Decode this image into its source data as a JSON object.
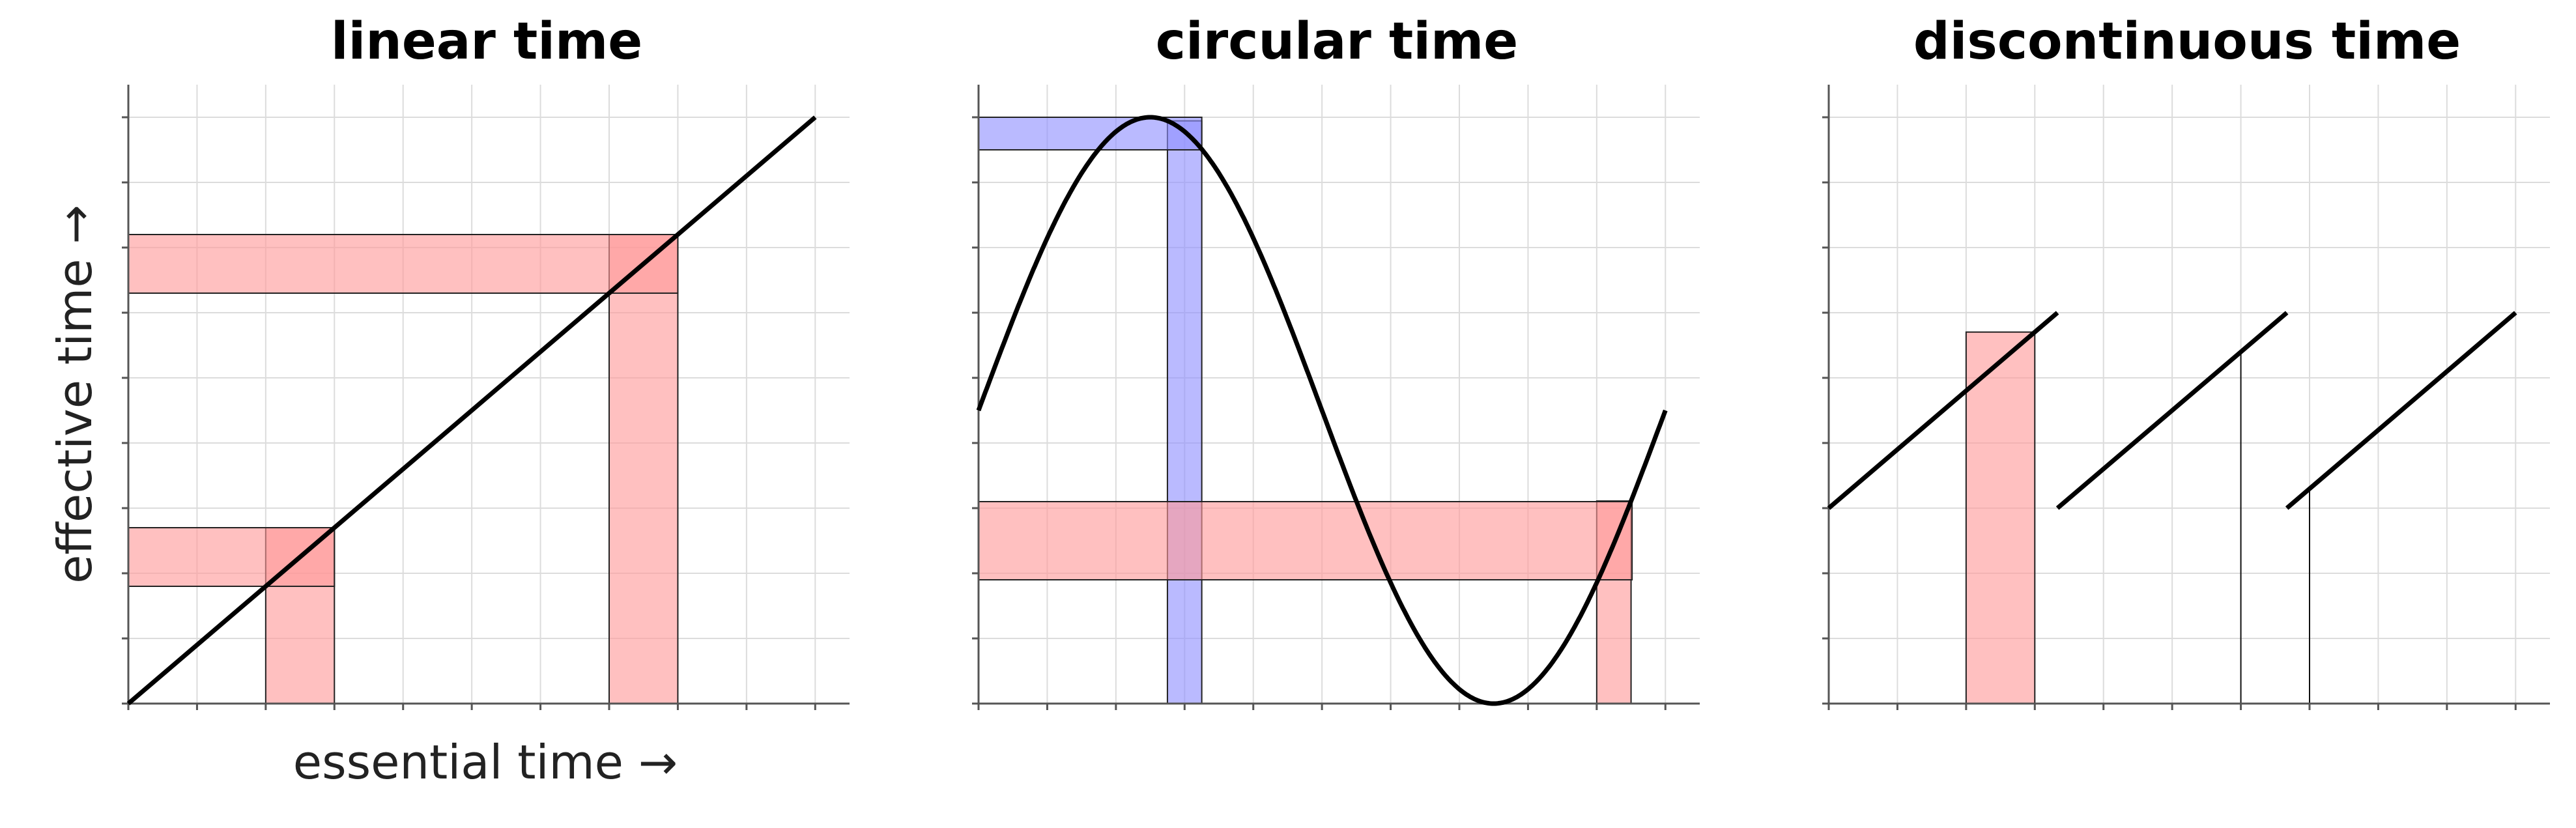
{
  "xlabel": "essential time →",
  "ylabel": "effective time →",
  "colors": {
    "curve": "#000000",
    "highlight_red": "#ff9999",
    "highlight_blue": "#8f8fff",
    "grid": "#dcdcdc",
    "axis": "#555555"
  },
  "chart_data": [
    {
      "type": "line",
      "title": "linear time",
      "xlim": [
        0,
        10.5
      ],
      "ylim": [
        0,
        9.5
      ],
      "grid": true,
      "curves": [
        {
          "name": "",
          "x": [
            0,
            10
          ],
          "y": [
            0,
            9
          ]
        }
      ],
      "bands": [
        {
          "orientation": "vertical",
          "from": 2,
          "to": 3,
          "ytop_at_x": "curve",
          "color": "red"
        },
        {
          "orientation": "horizontal",
          "from": 1.8,
          "to": 2.7,
          "xright_at_y": "curve",
          "color": "red"
        },
        {
          "orientation": "vertical",
          "from": 7,
          "to": 8,
          "ytop_at_x": "curve",
          "color": "red"
        },
        {
          "orientation": "horizontal",
          "from": 6.3,
          "to": 7.2,
          "xright_at_y": "curve",
          "color": "red"
        }
      ],
      "vlines": []
    },
    {
      "type": "line",
      "title": "circular time",
      "xlim": [
        0,
        10.5
      ],
      "ylim": [
        0,
        9.5
      ],
      "grid": true,
      "curves": [
        {
          "name": "",
          "function": "sine",
          "x_range": [
            0,
            10
          ],
          "center": 4.5,
          "amplitude": 4.5,
          "period": 10,
          "phase_zero": 0
        }
      ],
      "bands": [
        {
          "orientation": "vertical",
          "from": 2.75,
          "to": 3.25,
          "ytop_at_x": "curve",
          "color": "blue"
        },
        {
          "orientation": "horizontal",
          "from": 8.5,
          "to": 9.0,
          "xright_at_y": "curve",
          "color": "blue"
        },
        {
          "orientation": "vertical",
          "from": 9.0,
          "to": 9.5,
          "ytop_at_x": "curve",
          "color": "red"
        },
        {
          "orientation": "horizontal",
          "from": 1.9,
          "to": 3.1,
          "xright_at_y": "curve",
          "color": "red"
        }
      ],
      "vlines": []
    },
    {
      "type": "line",
      "title": "discontinuous time",
      "xlim": [
        0,
        10.5
      ],
      "ylim": [
        0,
        9.5
      ],
      "grid": true,
      "curves": [
        {
          "name": "",
          "x": [
            0,
            3.33
          ],
          "y": [
            3,
            6
          ]
        },
        {
          "name": "",
          "x": [
            3.33,
            6.67
          ],
          "y": [
            3,
            6
          ]
        },
        {
          "name": "",
          "x": [
            6.67,
            10
          ],
          "y": [
            3,
            6
          ]
        }
      ],
      "bands": [
        {
          "orientation": "vertical",
          "from": 2,
          "to": 3,
          "ytop_at_x": "curve",
          "color": "red"
        }
      ],
      "vlines": [
        {
          "x": 6,
          "y_top": 5.4
        },
        {
          "x": 7,
          "y_top": 3.3
        }
      ],
      "hsegments": [
        {
          "x_from": 6,
          "x_to": 7,
          "y": 0
        }
      ]
    }
  ]
}
